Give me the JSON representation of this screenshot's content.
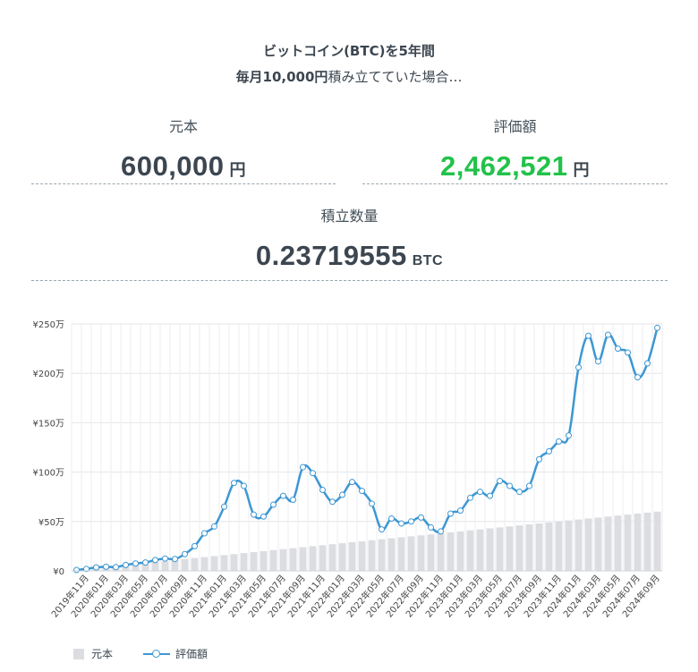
{
  "header": {
    "line1": "ビットコイン(BTC)を5年間",
    "line2_bold": "毎月10,000円",
    "line2_rest": "積み立てていた場合…"
  },
  "stats": {
    "principal": {
      "label": "元本",
      "value": "600,000",
      "unit": "円"
    },
    "valuation": {
      "label": "評価額",
      "value": "2,462,521",
      "unit": "円",
      "color": "#22c24a"
    },
    "quantity": {
      "label": "積立数量",
      "value": "0.23719555",
      "unit": "BTC"
    }
  },
  "legend": {
    "principal": "元本",
    "valuation": "評価額"
  },
  "chart_data": {
    "type": "bar+line",
    "y_unit": "万円",
    "ylim": [
      0,
      250
    ],
    "yticks": [
      "¥0",
      "¥50万",
      "¥100万",
      "¥150万",
      "¥200万",
      "¥250万"
    ],
    "grid": true,
    "legend_position": "bottom-left",
    "colors": {
      "bar": "#dcdde0",
      "line": "#3d97d3"
    },
    "x": [
      "2019-10",
      "2019-11",
      "2019-12",
      "2020-01",
      "2020-02",
      "2020-03",
      "2020-04",
      "2020-05",
      "2020-06",
      "2020-07",
      "2020-08",
      "2020-09",
      "2020-10",
      "2020-11",
      "2020-12",
      "2021-01",
      "2021-02",
      "2021-03",
      "2021-04",
      "2021-05",
      "2021-06",
      "2021-07",
      "2021-08",
      "2021-09",
      "2021-10",
      "2021-11",
      "2021-12",
      "2022-01",
      "2022-02",
      "2022-03",
      "2022-04",
      "2022-05",
      "2022-06",
      "2022-07",
      "2022-08",
      "2022-09",
      "2022-10",
      "2022-11",
      "2022-12",
      "2023-01",
      "2023-02",
      "2023-03",
      "2023-04",
      "2023-05",
      "2023-06",
      "2023-07",
      "2023-08",
      "2023-09",
      "2023-10",
      "2023-11",
      "2023-12",
      "2024-01",
      "2024-02",
      "2024-03",
      "2024-04",
      "2024-05",
      "2024-06",
      "2024-07",
      "2024-08",
      "2024-09"
    ],
    "x_tick_labels": [
      "2019年11月",
      "2020年01月",
      "2020年03月",
      "2020年05月",
      "2020年07月",
      "2020年09月",
      "2020年11月",
      "2021年01月",
      "2021年03月",
      "2021年05月",
      "2021年07月",
      "2021年09月",
      "2021年11月",
      "2022年01月",
      "2022年03月",
      "2022年05月",
      "2022年07月",
      "2022年09月",
      "2022年11月",
      "2023年01月",
      "2023年03月",
      "2023年05月",
      "2023年07月",
      "2023年09月",
      "2023年11月",
      "2024年01月",
      "2024年03月",
      "2024年05月",
      "2024年07月",
      "2024年09月"
    ],
    "series": [
      {
        "name": "元本",
        "type": "bar",
        "values": [
          1,
          2,
          3,
          4,
          5,
          6,
          7,
          8,
          9,
          10,
          11,
          12,
          13,
          14,
          15,
          16,
          17,
          18,
          19,
          20,
          21,
          22,
          23,
          24,
          25,
          26,
          27,
          28,
          29,
          30,
          31,
          32,
          33,
          34,
          35,
          36,
          37,
          38,
          39,
          40,
          41,
          42,
          43,
          44,
          45,
          46,
          47,
          48,
          49,
          50,
          51,
          52,
          53,
          54,
          55,
          56,
          57,
          58,
          59,
          60
        ]
      },
      {
        "name": "評価額",
        "type": "line",
        "values": [
          0.9,
          2.0,
          3.5,
          4.2,
          3.8,
          6.0,
          7.5,
          8.5,
          11.0,
          12.5,
          12.0,
          17.0,
          25.0,
          38.0,
          45.0,
          65.0,
          89.0,
          86.0,
          57.0,
          55.0,
          67.0,
          76.0,
          72.0,
          105.0,
          99.0,
          82.0,
          70.0,
          77.0,
          90.0,
          81.0,
          68.0,
          42.0,
          53.0,
          48.0,
          50.0,
          54.0,
          44.0,
          40.0,
          58.0,
          61.0,
          74.0,
          80.0,
          76.0,
          91.0,
          86.0,
          80.0,
          86.0,
          113.0,
          121.0,
          131.0,
          137.0,
          206.0,
          238.0,
          212.0,
          239.0,
          225.0,
          221.0,
          196.0,
          210.0,
          246.0
        ]
      }
    ]
  }
}
